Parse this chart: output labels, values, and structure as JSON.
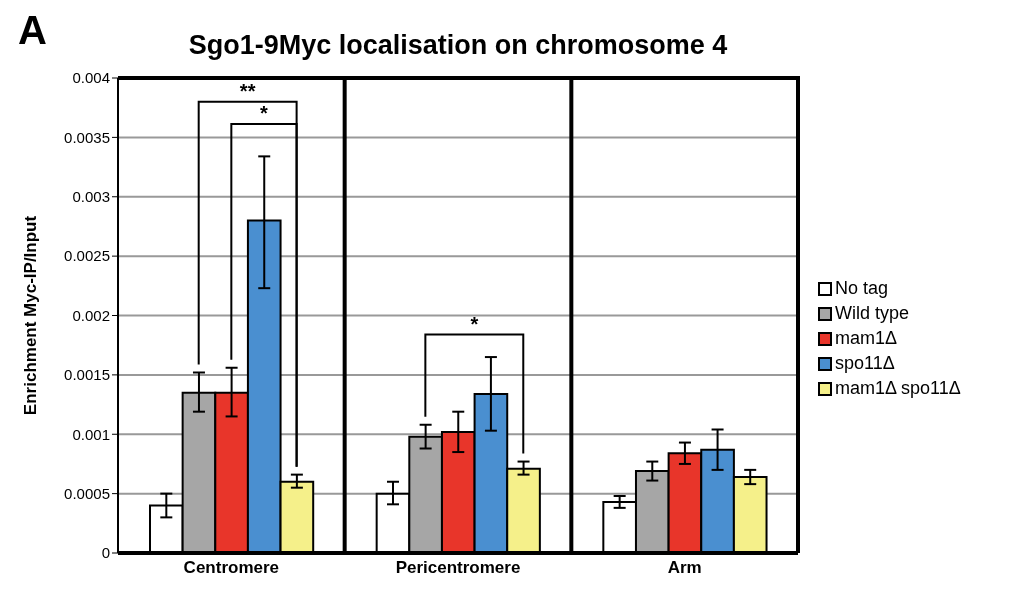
{
  "chart_data": {
    "type": "bar",
    "title": "Sgo1-9Myc localisation on chromosome 4",
    "ylabel": "Enrichment Myc-IP/Input",
    "categories": [
      "Centromere",
      "Pericentromere",
      "Arm"
    ],
    "series": [
      {
        "name": "No tag",
        "color": "#ffffff",
        "values": [
          0.0004,
          0.0005,
          0.00043
        ],
        "errors": [
          [
            0.0003,
            0.0005
          ],
          [
            0.00041,
            0.0006
          ],
          [
            0.00038,
            0.00048
          ]
        ]
      },
      {
        "name": "Wild type",
        "color": "#a6a6a6",
        "values": [
          0.00135,
          0.00098,
          0.00069
        ],
        "errors": [
          [
            0.00119,
            0.00152
          ],
          [
            0.00088,
            0.00108
          ],
          [
            0.00061,
            0.00077
          ]
        ]
      },
      {
        "name": "mam1Δ",
        "color": "#e8352a",
        "values": [
          0.00135,
          0.00102,
          0.00084
        ],
        "errors": [
          [
            0.00115,
            0.00156
          ],
          [
            0.00085,
            0.00119
          ],
          [
            0.00075,
            0.00093
          ]
        ]
      },
      {
        "name": "spo11Δ",
        "color": "#4a8fd0",
        "values": [
          0.0028,
          0.00134,
          0.00087
        ],
        "errors": [
          [
            0.00223,
            0.00334
          ],
          [
            0.00103,
            0.00165
          ],
          [
            0.0007,
            0.00104
          ]
        ]
      },
      {
        "name": "mam1Δ spo11Δ",
        "color": "#f5f08a",
        "values": [
          0.0006,
          0.00071,
          0.00064
        ],
        "errors": [
          [
            0.00055,
            0.00066
          ],
          [
            0.00066,
            0.00077
          ],
          [
            0.00058,
            0.0007
          ]
        ]
      }
    ],
    "ylim": [
      0,
      0.004
    ],
    "yticks": [
      0,
      0.0005,
      0.001,
      0.0015,
      0.002,
      0.0025,
      0.003,
      0.0035,
      0.004
    ],
    "grid": "y",
    "legend": "right",
    "annotations": [
      "A",
      "**",
      "*",
      "*"
    ]
  }
}
